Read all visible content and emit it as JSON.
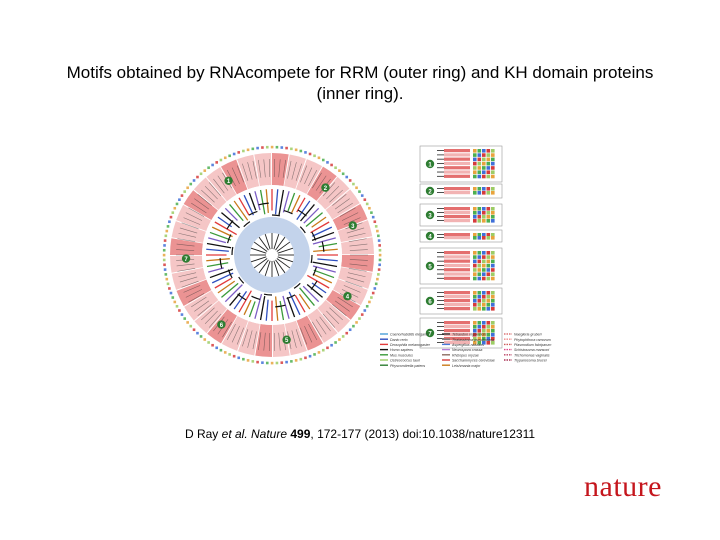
{
  "slide": {
    "title": "Motifs obtained by RNAcompete for RRM (outer ring) and KH domain proteins (inner ring).",
    "citation": {
      "authors": "D Ray ",
      "etal": "et al.",
      "journal": "Nature",
      "volume": "499",
      "pages": ", 172-177 (2013) doi:10.1038/nature12311"
    },
    "logo": "nature"
  },
  "figure": {
    "clade_numbers": [
      "1",
      "2",
      "3",
      "4",
      "5",
      "6",
      "7"
    ],
    "legend_species": [
      "Caenorhabditis elegans",
      "Danio rerio",
      "Drosophila melanogaster",
      "Homo sapiens",
      "Mus musculus",
      "Ostreococcus tauri",
      "Physcomitrella patens",
      "Tetraodon nigroviridis",
      "Thalassiosira pseudonana",
      "Aspergillus nidulans",
      "Neurospora crassa",
      "Rhizopus oryzae",
      "Saccharomyces cerevisiae",
      "Leishmania major",
      "Naegleria gruberi",
      "Phytophthora ramorum",
      "Plasmodium falciparum",
      "Schistosoma mansoni",
      "Trichomonas vaginalis",
      "Trypanosoma brucei"
    ],
    "colors": {
      "pink_band": "#f2b3b3",
      "red_band": "#e46f6f",
      "blue_inner": "#b9cbe8",
      "clade_badge": "#2e7d32",
      "logo_red": "#c5161d"
    }
  }
}
